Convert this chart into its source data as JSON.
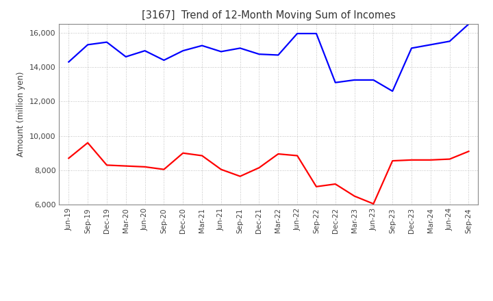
{
  "title": "[3167]  Trend of 12-Month Moving Sum of Incomes",
  "ylabel": "Amount (million yen)",
  "x_labels": [
    "Jun-19",
    "Sep-19",
    "Dec-19",
    "Mar-20",
    "Jun-20",
    "Sep-20",
    "Dec-20",
    "Mar-21",
    "Jun-21",
    "Sep-21",
    "Dec-21",
    "Mar-22",
    "Jun-22",
    "Sep-22",
    "Dec-22",
    "Mar-23",
    "Jun-23",
    "Sep-23",
    "Dec-23",
    "Mar-24",
    "Jun-24",
    "Sep-24"
  ],
  "ordinary_income": [
    14300,
    15300,
    15450,
    14600,
    14950,
    14400,
    14950,
    15250,
    14900,
    15100,
    14750,
    14700,
    15950,
    15950,
    13100,
    13250,
    13250,
    12600,
    15100,
    15300,
    15500,
    16500
  ],
  "net_income": [
    8700,
    9600,
    8300,
    8250,
    8200,
    8050,
    9000,
    8850,
    8050,
    7650,
    8150,
    8950,
    8850,
    7050,
    7200,
    6500,
    6050,
    8550,
    8600,
    8600,
    8650,
    9100
  ],
  "ordinary_color": "#0000ff",
  "net_color": "#ff0000",
  "ylim": [
    6000,
    16500
  ],
  "yticks": [
    6000,
    8000,
    10000,
    12000,
    14000,
    16000
  ],
  "bg_color": "#ffffff",
  "grid_color": "#aaaaaa",
  "title_color": "#404040",
  "line_width": 1.6
}
